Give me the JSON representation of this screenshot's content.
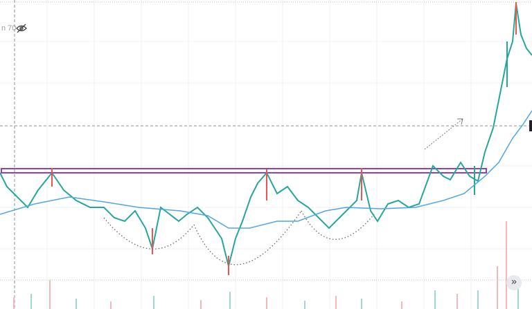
{
  "legend": {
    "label": "n 70"
  },
  "controls": {
    "scroll_button": "»"
  }
}
